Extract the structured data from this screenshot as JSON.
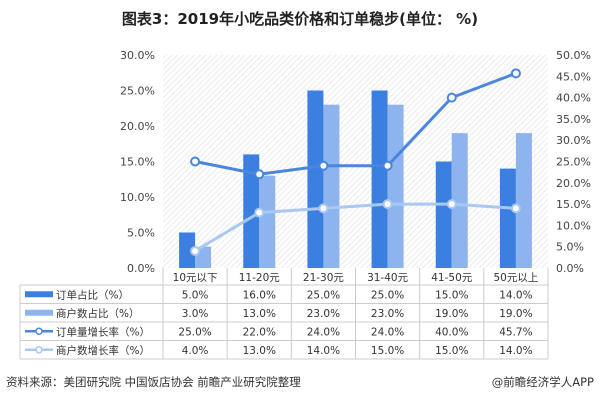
{
  "title": "图表3：2019年小吃品类价格和订单稳步(单位： %)",
  "source": "资料来源：美团研究院 中国饭店协会 前瞻产业研究院整理",
  "brand": "@前瞻经济学人APP",
  "chart_data": {
    "type": "bar+line",
    "categories": [
      "10元以下",
      "11-20元",
      "21-30元",
      "31-40元",
      "41-50元",
      "50元以上"
    ],
    "left_axis": {
      "range": [
        0,
        30
      ],
      "ticks": [
        "0.0%",
        "5.0%",
        "10.0%",
        "15.0%",
        "20.0%",
        "25.0%",
        "30.0%"
      ]
    },
    "right_axis": {
      "range": [
        0,
        50
      ],
      "ticks": [
        "0.0%",
        "5.0%",
        "10.0%",
        "15.0%",
        "20.0%",
        "25.0%",
        "30.0%",
        "35.0%",
        "40.0%",
        "45.0%",
        "50.0%"
      ]
    },
    "series": [
      {
        "name": "订单占比（%）",
        "type": "bar",
        "axis": "left",
        "color": "#3b7fe0",
        "values": [
          5.0,
          16.0,
          25.0,
          25.0,
          15.0,
          14.0
        ]
      },
      {
        "name": "商户数占比（%）",
        "type": "bar",
        "axis": "left",
        "color": "#8db4ee",
        "values": [
          3.0,
          13.0,
          23.0,
          23.0,
          19.0,
          19.0
        ]
      },
      {
        "name": "订单量增长率（%）",
        "type": "line",
        "axis": "right",
        "color": "#4a86e0",
        "values": [
          25.0,
          22.0,
          24.0,
          24.0,
          40.0,
          45.7
        ]
      },
      {
        "name": "商户数增长率（%）",
        "type": "line",
        "axis": "right",
        "color": "#a9c8f2",
        "values": [
          4.0,
          13.0,
          14.0,
          15.0,
          15.0,
          14.0
        ]
      }
    ],
    "legend": "data-table"
  }
}
